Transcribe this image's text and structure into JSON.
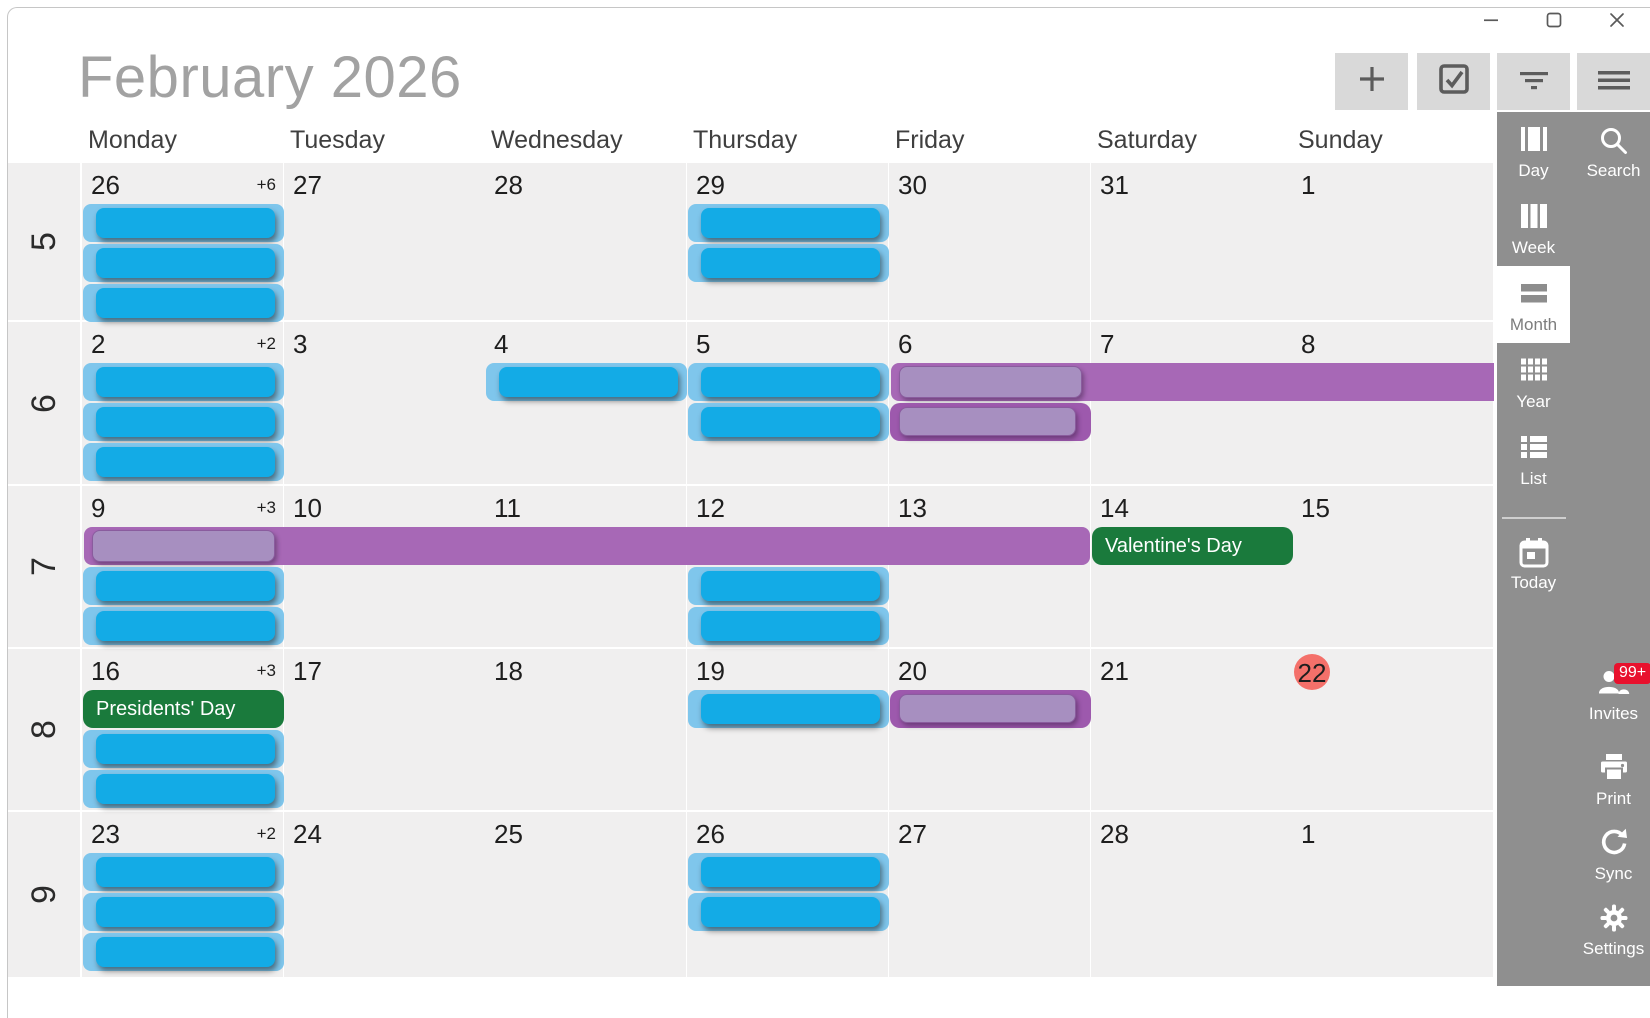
{
  "window": {
    "controls": [
      {
        "name": "minimize",
        "icon": "minimize-icon"
      },
      {
        "name": "maximize",
        "icon": "maximize-icon"
      },
      {
        "name": "close",
        "icon": "close-icon"
      }
    ]
  },
  "header": {
    "title": "February 2026"
  },
  "toolbar": {
    "buttons": [
      {
        "name": "add-event",
        "icon": "add-icon"
      },
      {
        "name": "tasks",
        "icon": "tasks-icon"
      },
      {
        "name": "filter",
        "icon": "filter-icon"
      },
      {
        "name": "menu",
        "icon": "menu-icon"
      }
    ]
  },
  "calendar": {
    "day_headers": [
      "Monday",
      "Tuesday",
      "Wednesday",
      "Thursday",
      "Friday",
      "Saturday",
      "Sunday"
    ],
    "weeks": [
      {
        "number": "5",
        "days": [
          {
            "date": "26",
            "more": "+6",
            "events": [
              {
                "color": "blue"
              },
              {
                "color": "blue"
              },
              {
                "color": "blue"
              }
            ]
          },
          {
            "date": "27"
          },
          {
            "date": "28"
          },
          {
            "date": "29",
            "events": [
              {
                "color": "blue"
              },
              {
                "color": "blue"
              }
            ]
          },
          {
            "date": "30"
          },
          {
            "date": "31"
          },
          {
            "date": "1"
          }
        ]
      },
      {
        "number": "6",
        "days": [
          {
            "date": "2",
            "more": "+2",
            "events": [
              {
                "color": "blue"
              },
              {
                "color": "blue"
              },
              {
                "color": "blue"
              }
            ]
          },
          {
            "date": "3"
          },
          {
            "date": "4",
            "events": [
              {
                "color": "blue"
              }
            ]
          },
          {
            "date": "5",
            "events": [
              {
                "color": "blue"
              },
              {
                "color": "blue"
              }
            ]
          },
          {
            "date": "6",
            "events": [
              {
                "color": "purple",
                "variant": "span",
                "span_days": 3,
                "clip_right": true
              },
              {
                "color": "purple",
                "variant": "single",
                "slot": 1
              }
            ]
          },
          {
            "date": "7"
          },
          {
            "date": "8"
          }
        ]
      },
      {
        "number": "7",
        "days": [
          {
            "date": "9",
            "more": "+3",
            "events": [
              {
                "color": "purple",
                "variant": "span",
                "span_days": 5
              },
              {
                "color": "blue",
                "slot": 1
              },
              {
                "color": "blue",
                "slot": 2
              }
            ]
          },
          {
            "date": "10"
          },
          {
            "date": "11"
          },
          {
            "date": "12",
            "events": [
              {
                "color": "blue",
                "slot": 1
              },
              {
                "color": "blue",
                "slot": 2
              }
            ]
          },
          {
            "date": "13"
          },
          {
            "date": "14",
            "events": [
              {
                "color": "green",
                "label": "Valentine's Day"
              }
            ]
          },
          {
            "date": "15"
          }
        ]
      },
      {
        "number": "8",
        "days": [
          {
            "date": "16",
            "more": "+3",
            "events": [
              {
                "color": "green",
                "label": "Presidents' Day"
              },
              {
                "color": "blue",
                "slot": 1
              },
              {
                "color": "blue",
                "slot": 2
              }
            ]
          },
          {
            "date": "17"
          },
          {
            "date": "18"
          },
          {
            "date": "19",
            "events": [
              {
                "color": "blue"
              }
            ]
          },
          {
            "date": "20",
            "events": [
              {
                "color": "purple",
                "variant": "single"
              }
            ]
          },
          {
            "date": "21"
          },
          {
            "date": "22",
            "today": true
          }
        ]
      },
      {
        "number": "9",
        "days": [
          {
            "date": "23",
            "more": "+2",
            "events": [
              {
                "color": "blue"
              },
              {
                "color": "blue"
              },
              {
                "color": "blue"
              }
            ]
          },
          {
            "date": "24"
          },
          {
            "date": "25"
          },
          {
            "date": "26",
            "events": [
              {
                "color": "blue"
              },
              {
                "color": "blue"
              }
            ]
          },
          {
            "date": "27"
          },
          {
            "date": "28"
          },
          {
            "date": "1"
          }
        ]
      }
    ]
  },
  "sidebar": {
    "views": [
      {
        "label": "Day",
        "icon": "day-view-icon"
      },
      {
        "label": "Week",
        "icon": "week-view-icon"
      },
      {
        "label": "Month",
        "icon": "month-view-icon",
        "selected": true
      },
      {
        "label": "Year",
        "icon": "year-view-icon"
      },
      {
        "label": "List",
        "icon": "list-view-icon"
      }
    ],
    "today": {
      "label": "Today",
      "icon": "today-icon"
    },
    "search": {
      "label": "Search",
      "icon": "search-icon"
    },
    "actions": [
      {
        "label": "Invites",
        "icon": "invites-icon",
        "badge": "99+"
      },
      {
        "label": "Print",
        "icon": "print-icon"
      },
      {
        "label": "Sync",
        "icon": "sync-icon"
      },
      {
        "label": "Settings",
        "icon": "settings-icon"
      }
    ]
  },
  "colors": {
    "event_blue": "#13abe6",
    "event_blue_container": "#7fc6ec",
    "event_purple_solid": "#a768b6",
    "event_purple_light": "#a78fc0",
    "event_purple_dark": "#9d59ad",
    "holiday_green": "#1a7a3c",
    "today_red": "#f4706a",
    "badge_red": "#e8112d",
    "sidebar_gray": "#8f8f8f",
    "cell_gray": "#f0efef"
  }
}
